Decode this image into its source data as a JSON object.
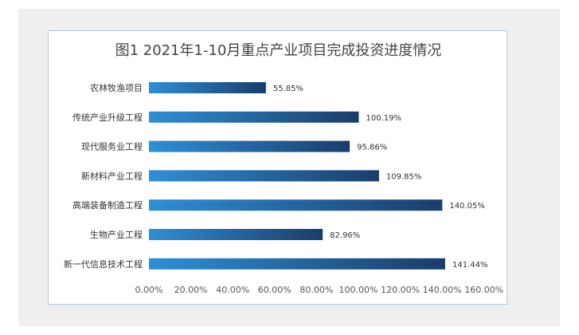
{
  "chart_data": {
    "type": "bar",
    "orientation": "horizontal",
    "title": "图1 2021年1-10月重点产业项目完成投资进度情况",
    "xlabel": "",
    "ylabel": "",
    "xlim": [
      0,
      160
    ],
    "x_ticks": [
      "0.00%",
      "20.00%",
      "40.00%",
      "60.00%",
      "80.00%",
      "100.00%",
      "120.00%",
      "140.00%",
      "160.00%"
    ],
    "grid": false,
    "legend": "none",
    "bar_gradient": [
      "#2e8fd6",
      "#1a3d6b"
    ],
    "categories": [
      "农林牧渔项目",
      "传统产业升级工程",
      "现代服务业工程",
      "新材料产业工程",
      "高端装备制造工程",
      "生物产业工程",
      "新一代信息技术工程"
    ],
    "values": [
      55.85,
      100.19,
      95.86,
      109.85,
      140.05,
      82.96,
      141.44
    ],
    "value_labels": [
      "55.85%",
      "100.19%",
      "95.86%",
      "109.85%",
      "140.05%",
      "82.96%",
      "141.44%"
    ]
  }
}
